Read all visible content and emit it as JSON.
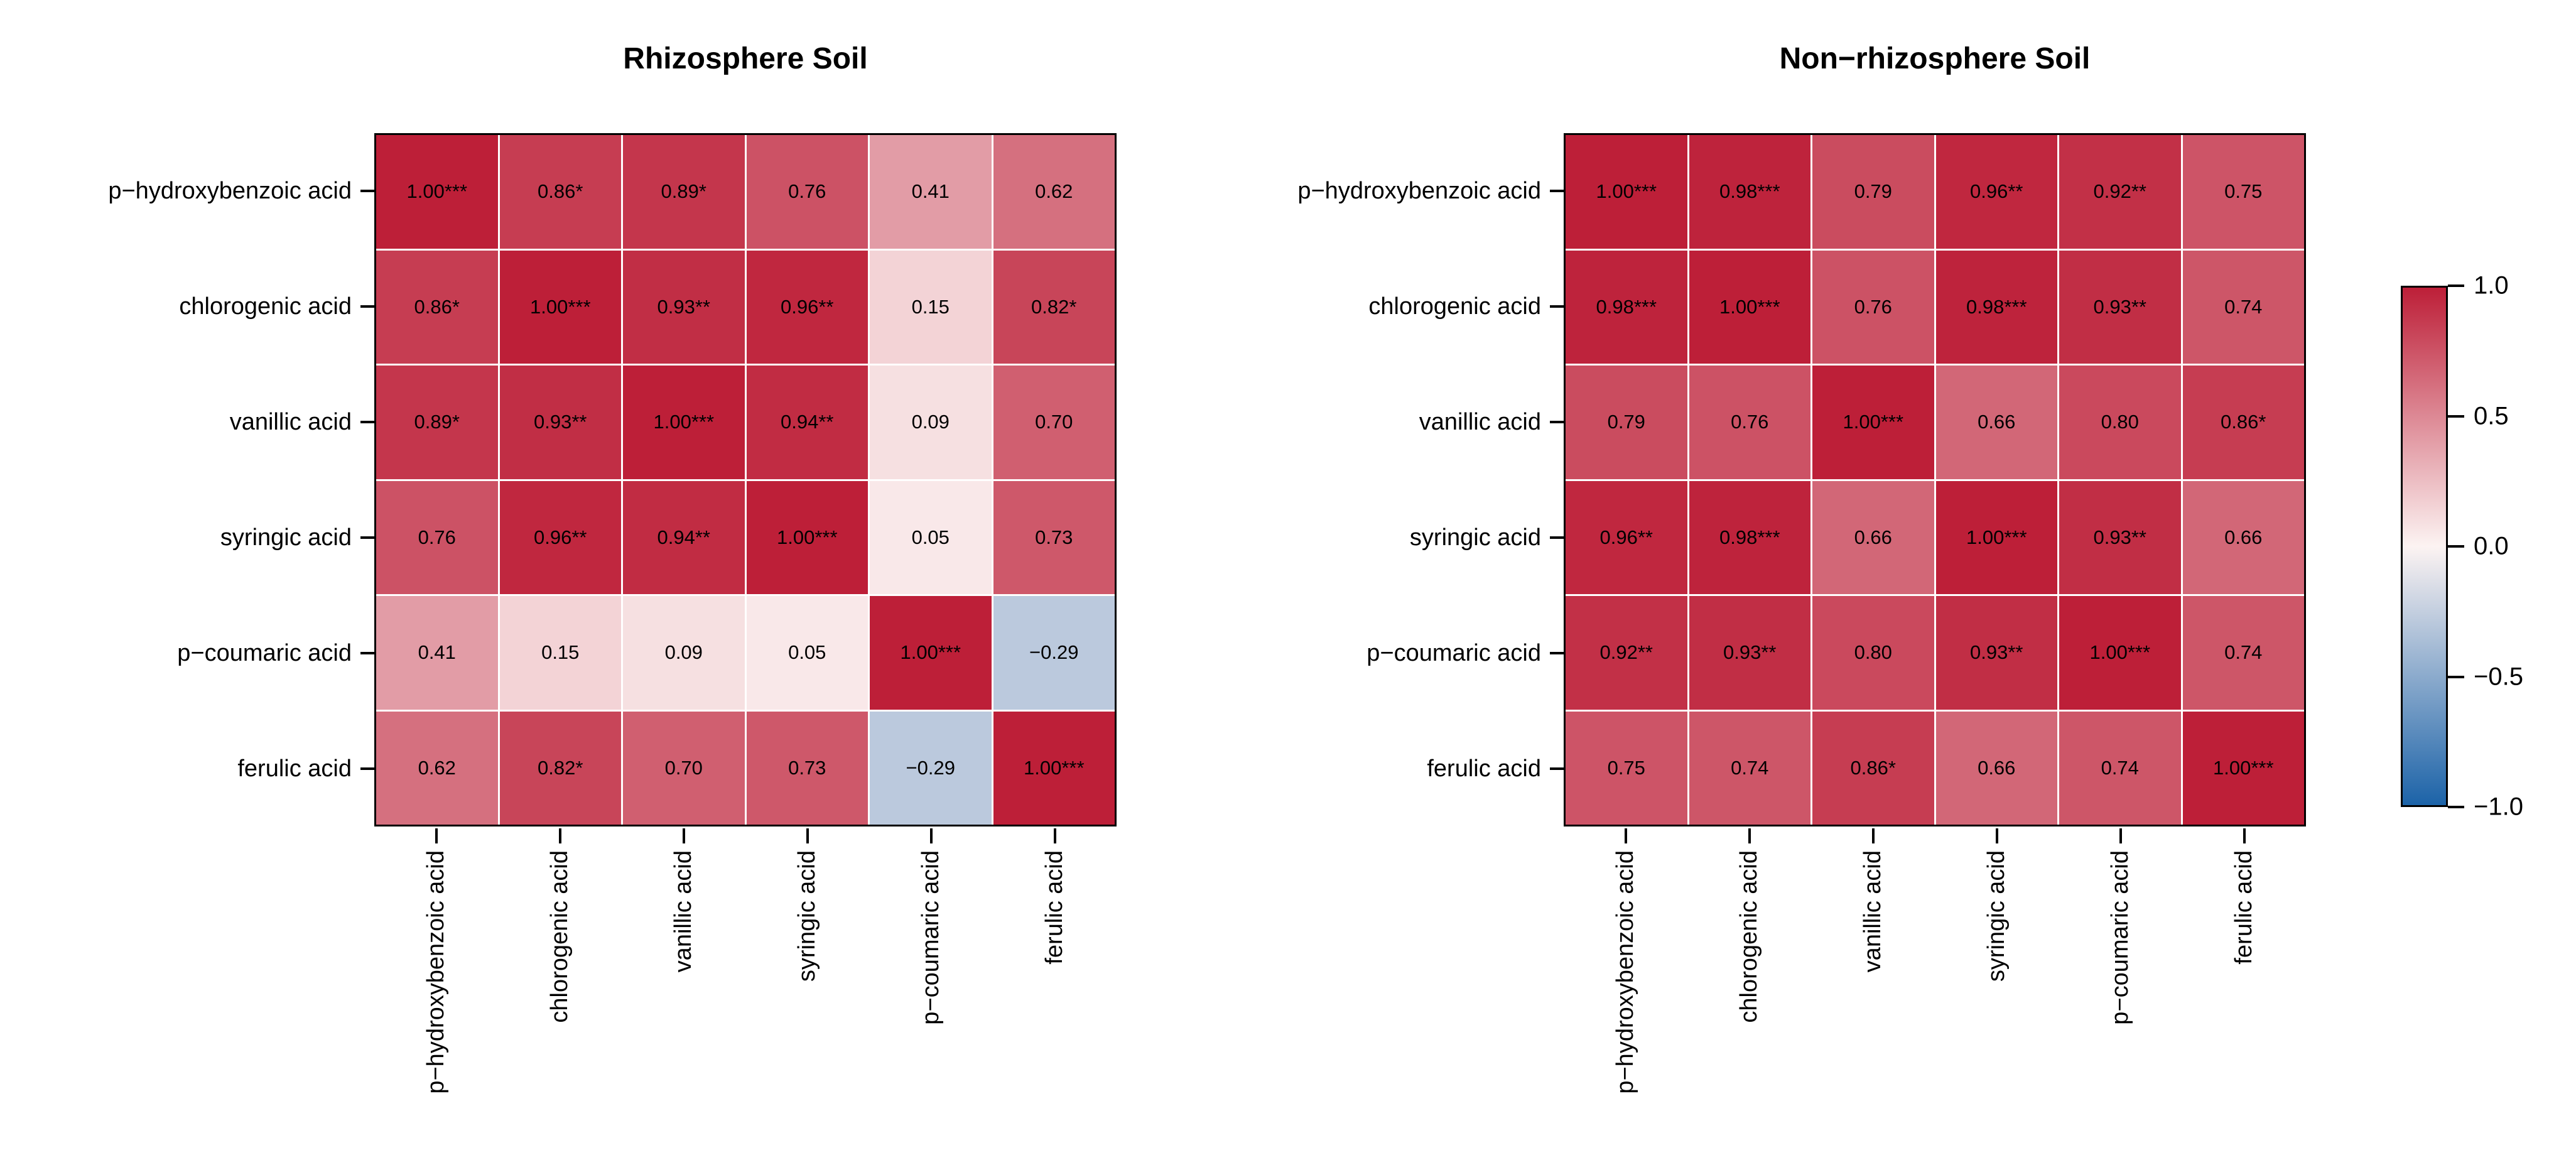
{
  "figure_colors": {
    "max_positive": "#bd1f38",
    "zero": "#fcf3f2",
    "max_negative": "#1c63a8",
    "grid_line": "#ffffff",
    "border": "#000000"
  },
  "colorbar": {
    "tick_labels": [
      "1.0",
      "0.5",
      "0.0",
      "−0.5",
      "−1.0"
    ],
    "tick_values": [
      1.0,
      0.5,
      0.0,
      -0.5,
      -1.0
    ],
    "position": "right"
  },
  "chart_data": [
    {
      "type": "heatmap",
      "title": "Rhizosphere Soil",
      "rows": [
        "p−hydroxybenzoic acid",
        "chlorogenic acid",
        "vanillic acid",
        "syringic acid",
        "p−coumaric acid",
        "ferulic acid"
      ],
      "cols": [
        "p−hydroxybenzoic acid",
        "chlorogenic acid",
        "vanillic acid",
        "syringic acid",
        "p−coumaric acid",
        "ferulic acid"
      ],
      "values": [
        [
          1.0,
          0.86,
          0.89,
          0.76,
          0.41,
          0.62
        ],
        [
          0.86,
          1.0,
          0.93,
          0.96,
          0.15,
          0.82
        ],
        [
          0.89,
          0.93,
          1.0,
          0.94,
          0.09,
          0.7
        ],
        [
          0.76,
          0.96,
          0.94,
          1.0,
          0.05,
          0.73
        ],
        [
          0.41,
          0.15,
          0.09,
          0.05,
          1.0,
          -0.29
        ],
        [
          0.62,
          0.82,
          0.7,
          0.73,
          -0.29,
          1.0
        ]
      ],
      "cell_labels": [
        [
          "1.00***",
          "0.86*",
          "0.89*",
          "0.76",
          "0.41",
          "0.62"
        ],
        [
          "0.86*",
          "1.00***",
          "0.93**",
          "0.96**",
          "0.15",
          "0.82*"
        ],
        [
          "0.89*",
          "0.93**",
          "1.00***",
          "0.94**",
          "0.09",
          "0.70"
        ],
        [
          "0.76",
          "0.96**",
          "0.94**",
          "1.00***",
          "0.05",
          "0.73"
        ],
        [
          "0.41",
          "0.15",
          "0.09",
          "0.05",
          "1.00***",
          "−0.29"
        ],
        [
          "0.62",
          "0.82*",
          "0.70",
          "0.73",
          "−0.29",
          "1.00***"
        ]
      ],
      "colorscale": {
        "min": -1,
        "max": 1,
        "min_color": "#1c63a8",
        "mid_color": "#fcf3f2",
        "max_color": "#bd1f38"
      },
      "legend_position": "right"
    },
    {
      "type": "heatmap",
      "title": "Non−rhizosphere Soil",
      "rows": [
        "p−hydroxybenzoic acid",
        "chlorogenic acid",
        "vanillic acid",
        "syringic acid",
        "p−coumaric acid",
        "ferulic acid"
      ],
      "cols": [
        "p−hydroxybenzoic acid",
        "chlorogenic acid",
        "vanillic acid",
        "syringic acid",
        "p−coumaric acid",
        "ferulic acid"
      ],
      "values": [
        [
          1.0,
          0.98,
          0.79,
          0.96,
          0.92,
          0.75
        ],
        [
          0.98,
          1.0,
          0.76,
          0.98,
          0.93,
          0.74
        ],
        [
          0.79,
          0.76,
          1.0,
          0.66,
          0.8,
          0.86
        ],
        [
          0.96,
          0.98,
          0.66,
          1.0,
          0.93,
          0.66
        ],
        [
          0.92,
          0.93,
          0.8,
          0.93,
          1.0,
          0.74
        ],
        [
          0.75,
          0.74,
          0.86,
          0.66,
          0.74,
          1.0
        ]
      ],
      "cell_labels": [
        [
          "1.00***",
          "0.98***",
          "0.79",
          "0.96**",
          "0.92**",
          "0.75"
        ],
        [
          "0.98***",
          "1.00***",
          "0.76",
          "0.98***",
          "0.93**",
          "0.74"
        ],
        [
          "0.79",
          "0.76",
          "1.00***",
          "0.66",
          "0.80",
          "0.86*"
        ],
        [
          "0.96**",
          "0.98***",
          "0.66",
          "1.00***",
          "0.93**",
          "0.66"
        ],
        [
          "0.92**",
          "0.93**",
          "0.80",
          "0.93**",
          "1.00***",
          "0.74"
        ],
        [
          "0.75",
          "0.74",
          "0.86*",
          "0.66",
          "0.74",
          "1.00***"
        ]
      ],
      "colorscale": {
        "min": -1,
        "max": 1,
        "min_color": "#1c63a8",
        "mid_color": "#fcf3f2",
        "max_color": "#bd1f38"
      },
      "legend_position": "right"
    }
  ]
}
